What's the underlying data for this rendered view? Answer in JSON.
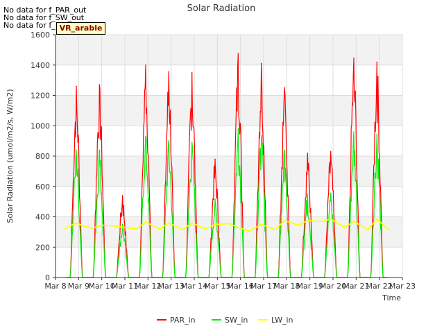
{
  "notes": [
    "No data for f_PAR_out",
    "No data for f_SW_out",
    "No data for f_LW_out"
  ],
  "badge": "VR_arable",
  "chart_data": {
    "type": "line",
    "title": "Solar Radiation",
    "xlabel": "Time",
    "ylabel": "Solar Radiation (umol/m2/s, W/m2)",
    "xlim": [
      8,
      23
    ],
    "ylim": [
      0,
      1600
    ],
    "x_ticks": [
      8,
      9,
      10,
      11,
      12,
      13,
      14,
      15,
      16,
      17,
      18,
      19,
      20,
      21,
      22,
      23
    ],
    "x_tick_labels": [
      "Mar 8",
      "Mar 9",
      "Mar 10",
      "Mar 11",
      "Mar 12",
      "Mar 13",
      "Mar 14",
      "Mar 15",
      "Mar 16",
      "Mar 17",
      "Mar 18",
      "Mar 19",
      "Mar 20",
      "Mar 21",
      "Mar 22",
      "Mar 23"
    ],
    "y_ticks": [
      0,
      200,
      400,
      600,
      800,
      1000,
      1200,
      1400,
      1600
    ],
    "grid": true,
    "legend_position": "bottom-center",
    "series": [
      {
        "name": "PAR_in",
        "color": "#ff0000",
        "daily_peaks": [
          {
            "day": 8.9,
            "peak": 1260
          },
          {
            "day": 9.9,
            "peak": 1270
          },
          {
            "day": 10.9,
            "peak": 540
          },
          {
            "day": 11.9,
            "peak": 1400
          },
          {
            "day": 12.9,
            "peak": 1355
          },
          {
            "day": 13.9,
            "peak": 1350
          },
          {
            "day": 14.9,
            "peak": 780
          },
          {
            "day": 15.9,
            "peak": 1475
          },
          {
            "day": 16.9,
            "peak": 1410
          },
          {
            "day": 17.9,
            "peak": 1250
          },
          {
            "day": 18.9,
            "peak": 820
          },
          {
            "day": 19.9,
            "peak": 830
          },
          {
            "day": 20.9,
            "peak": 1445
          },
          {
            "day": 21.9,
            "peak": 1420
          }
        ]
      },
      {
        "name": "SW_in",
        "color": "#00ee00",
        "daily_peaks": [
          {
            "day": 8.9,
            "peak": 840
          },
          {
            "day": 9.9,
            "peak": 840
          },
          {
            "day": 10.9,
            "peak": 350
          },
          {
            "day": 11.9,
            "peak": 930
          },
          {
            "day": 12.9,
            "peak": 900
          },
          {
            "day": 13.9,
            "peak": 890
          },
          {
            "day": 14.9,
            "peak": 515
          },
          {
            "day": 15.9,
            "peak": 980
          },
          {
            "day": 16.9,
            "peak": 935
          },
          {
            "day": 17.9,
            "peak": 840
          },
          {
            "day": 18.9,
            "peak": 550
          },
          {
            "day": 19.9,
            "peak": 555
          },
          {
            "day": 20.9,
            "peak": 960
          },
          {
            "day": 21.9,
            "peak": 945
          }
        ]
      },
      {
        "name": "LW_in",
        "color": "#ffff00",
        "x": [
          8.4,
          8.9,
          9.2,
          9.6,
          10.0,
          10.5,
          11.0,
          11.5,
          11.9,
          12.5,
          12.9,
          13.5,
          13.9,
          14.5,
          14.9,
          15.5,
          15.9,
          16.4,
          16.9,
          17.5,
          17.9,
          18.5,
          18.9,
          19.5,
          19.9,
          20.5,
          20.9,
          21.5,
          21.9,
          22.4
        ],
        "values": [
          320,
          360,
          340,
          325,
          345,
          340,
          330,
          320,
          365,
          320,
          360,
          315,
          360,
          320,
          350,
          355,
          330,
          305,
          350,
          315,
          375,
          345,
          375,
          370,
          385,
          330,
          370,
          315,
          385,
          315
        ]
      }
    ]
  }
}
